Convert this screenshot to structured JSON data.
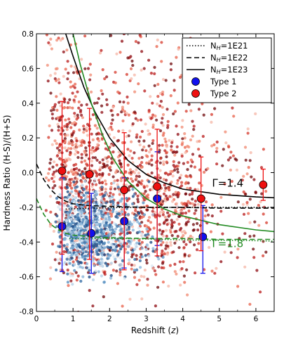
{
  "chart_data": {
    "type": "scatter",
    "xlabel": "Redshift (z)",
    "ylabel": "Hardness Ratio (H-S)/(H+S)",
    "xlim": [
      0,
      6.5
    ],
    "ylim": [
      -0.8,
      0.8
    ],
    "xticks": [
      0,
      1,
      2,
      3,
      4,
      5,
      6
    ],
    "yticks": [
      -0.8,
      -0.6,
      -0.4,
      -0.2,
      0.0,
      0.2,
      0.4,
      0.6,
      0.8
    ],
    "grid": false,
    "legend_position": "top-right",
    "legend": [
      {
        "label": "N_H=1E21",
        "style": "dotted"
      },
      {
        "label": "N_H=1E22",
        "style": "dashed"
      },
      {
        "label": "N_H=1E23",
        "style": "solid"
      },
      {
        "label": "Type 1",
        "marker": "circle",
        "color": "#1010ee"
      },
      {
        "label": "Type 2",
        "marker": "circle",
        "color": "#ee1010"
      }
    ],
    "annotations": [
      {
        "text": "Γ=1.4",
        "x": 4.8,
        "y": -0.08,
        "color": "#000000"
      },
      {
        "text": "Γ=1.8",
        "x": 4.8,
        "y": -0.43,
        "color": "#228b22"
      }
    ],
    "series": [
      {
        "name": "Type 1",
        "color": "#1010ee",
        "points": [
          {
            "x": 0.7,
            "y": -0.31,
            "err_low": 0.26,
            "err_high": 0.28
          },
          {
            "x": 1.5,
            "y": -0.35,
            "err_low": 0.23,
            "err_high": 0.23
          },
          {
            "x": 2.4,
            "y": -0.28,
            "err_low": 0.27,
            "err_high": 0.25
          },
          {
            "x": 3.3,
            "y": -0.15,
            "err_low": 0.27,
            "err_high": 0.27
          },
          {
            "x": 4.55,
            "y": -0.37,
            "err_low": 0.21,
            "err_high": 0.18
          }
        ]
      },
      {
        "name": "Type 2",
        "color": "#ee1010",
        "points": [
          {
            "x": 0.7,
            "y": 0.01,
            "err_low": 0.48,
            "err_high": 0.4
          },
          {
            "x": 1.45,
            "y": -0.01,
            "err_low": 0.49,
            "err_high": 0.38
          },
          {
            "x": 2.4,
            "y": -0.1,
            "err_low": 0.46,
            "err_high": 0.33
          },
          {
            "x": 3.3,
            "y": -0.08,
            "err_low": 0.4,
            "err_high": 0.33
          },
          {
            "x": 4.5,
            "y": -0.15,
            "err_low": 0.3,
            "err_high": 0.24
          },
          {
            "x": 6.2,
            "y": -0.07,
            "err_low": 0.09,
            "err_high": 0.09
          }
        ]
      }
    ],
    "model_curves": [
      {
        "gamma": 1.4,
        "nh": "1E21",
        "style": "dotted",
        "color": "#000000",
        "x": [
          0.8,
          1.5,
          2.5,
          3.5,
          4.5,
          5.5,
          6.5
        ],
        "y": [
          -0.21,
          -0.205,
          -0.2,
          -0.2,
          -0.2,
          -0.2,
          -0.2
        ]
      },
      {
        "gamma": 1.4,
        "nh": "1E22",
        "style": "dashed",
        "color": "#000000",
        "x": [
          0.0,
          0.2,
          0.4,
          0.6,
          0.8,
          1.0,
          1.4,
          2.0,
          3.0,
          4.0,
          5.0,
          6.5
        ],
        "y": [
          0.05,
          -0.04,
          -0.1,
          -0.14,
          -0.165,
          -0.18,
          -0.19,
          -0.195,
          -0.2,
          -0.2,
          -0.205,
          -0.205
        ]
      },
      {
        "gamma": 1.4,
        "nh": "1E23",
        "style": "solid",
        "color": "#000000",
        "x": [
          0.8,
          1.0,
          1.3,
          1.6,
          2.0,
          2.5,
          3.0,
          3.5,
          4.0,
          5.0,
          6.0,
          6.5
        ],
        "y": [
          0.8,
          0.67,
          0.49,
          0.35,
          0.2,
          0.07,
          -0.01,
          -0.06,
          -0.095,
          -0.125,
          -0.14,
          -0.145
        ]
      },
      {
        "gamma": 1.8,
        "nh": "1E21",
        "style": "dotted",
        "color": "#228b22",
        "x": [
          0.9,
          1.5,
          2.5,
          3.5,
          4.5,
          5.5,
          6.5
        ],
        "y": [
          -0.38,
          -0.38,
          -0.38,
          -0.385,
          -0.39,
          -0.39,
          -0.395
        ]
      },
      {
        "gamma": 1.8,
        "nh": "1E22",
        "style": "dashed",
        "color": "#228b22",
        "x": [
          0.0,
          0.2,
          0.4,
          0.6,
          0.8,
          1.0,
          1.5,
          2.0,
          3.0,
          4.0,
          5.0,
          6.5
        ],
        "y": [
          -0.15,
          -0.24,
          -0.3,
          -0.33,
          -0.35,
          -0.36,
          -0.37,
          -0.375,
          -0.38,
          -0.38,
          -0.385,
          -0.385
        ]
      },
      {
        "gamma": 1.8,
        "nh": "1E23",
        "style": "solid",
        "color": "#228b22",
        "x": [
          1.0,
          1.2,
          1.5,
          1.8,
          2.1,
          2.5,
          3.0,
          3.5,
          4.0,
          5.0,
          6.0,
          6.5
        ],
        "y": [
          0.8,
          0.62,
          0.4,
          0.22,
          0.08,
          -0.05,
          -0.15,
          -0.21,
          -0.25,
          -0.3,
          -0.33,
          -0.34
        ]
      }
    ]
  }
}
